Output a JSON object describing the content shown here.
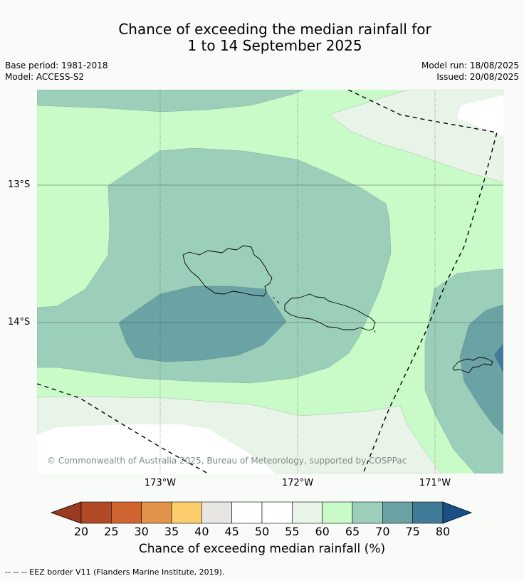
{
  "title": {
    "line1": "Chance of exceeding the median rainfall for",
    "line2": "1 to 14 September 2025"
  },
  "meta": {
    "base_period": "Base period: 1981-2018",
    "model": "Model: ACCESS-S2",
    "model_run": "Model run: 18/08/2025",
    "issued": "Issued: 20/08/2025"
  },
  "map": {
    "lat_labels": [
      "13°S",
      "14°S"
    ],
    "lon_labels": [
      "173°W",
      "172°W",
      "171°W"
    ],
    "copyright": "© Commonwealth of Australia 2025, Bureau of Meteorology, supported by COSPPac"
  },
  "colorbar": {
    "ticks": [
      "20",
      "25",
      "30",
      "35",
      "40",
      "45",
      "50",
      "55",
      "60",
      "65",
      "70",
      "75",
      "80"
    ],
    "colors": [
      "#b04925",
      "#d06532",
      "#e2934a",
      "#fccd6b",
      "#e8e6e2",
      "#ffffff",
      "#ffffff",
      "#e8f4e8",
      "#c9fbc9",
      "#9ccfba",
      "#6ba2a4",
      "#427b98"
    ],
    "under_color": "#9c3a22",
    "over_color": "#174f86",
    "label": "Chance of exceeding median rainfall (%)"
  },
  "footnote": "--  --  -- EEZ border V11 (Flanders Marine Institute, 2019)."
}
